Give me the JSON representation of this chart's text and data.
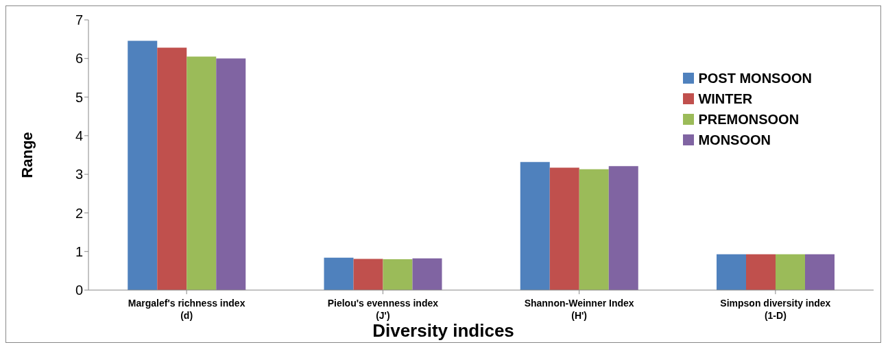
{
  "chart_data": {
    "type": "bar",
    "xlabel": "Diversity indices",
    "ylabel": "Range",
    "categories": [
      "Margalef's richness index (d)",
      "Pielou's evenness index (J')",
      "Shannon-Weinner Index (H')",
      "Simpson diversity index (1-D)"
    ],
    "series": [
      {
        "name": "POST MONSOON",
        "color": "#4f81bd",
        "values": [
          6.46,
          0.84,
          3.32,
          0.93
        ]
      },
      {
        "name": "WINTER",
        "color": "#c0504d",
        "values": [
          6.28,
          0.81,
          3.17,
          0.93
        ]
      },
      {
        "name": "PREMONSOON",
        "color": "#9bbb59",
        "values": [
          6.05,
          0.8,
          3.13,
          0.93
        ]
      },
      {
        "name": "MONSOON",
        "color": "#8064a2",
        "values": [
          6.0,
          0.82,
          3.21,
          0.93
        ]
      }
    ],
    "ylim": [
      0,
      7
    ],
    "yticks": [
      0,
      1,
      2,
      3,
      4,
      5,
      6,
      7
    ],
    "grid": false,
    "legend": "right"
  }
}
